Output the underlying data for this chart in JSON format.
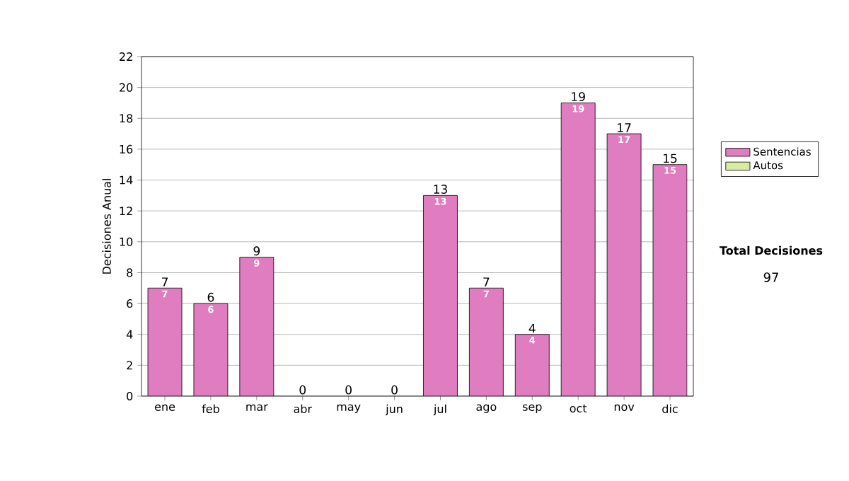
{
  "chart_data": {
    "type": "bar",
    "ylabel": "Decisiones Anual",
    "categories": [
      "ene",
      "feb",
      "mar",
      "abr",
      "may",
      "jun",
      "jul",
      "ago",
      "sep",
      "oct",
      "nov",
      "dic"
    ],
    "series": [
      {
        "name": "Sentencias",
        "color": "#e07cc0",
        "values": [
          7,
          6,
          9,
          0,
          0,
          0,
          13,
          7,
          4,
          19,
          17,
          15
        ],
        "value_labels": [
          "7",
          "6",
          "9",
          null,
          null,
          null,
          "13",
          "7",
          "4",
          "19",
          "17",
          "15"
        ]
      },
      {
        "name": "Autos",
        "color": "#d8eca0",
        "values": [
          0,
          0,
          0,
          0,
          0,
          0,
          0,
          0,
          0,
          0,
          0,
          0
        ]
      }
    ],
    "stacked": true,
    "totals": [
      "7",
      "6",
      "9",
      "0",
      "0",
      "0",
      "13",
      "7",
      "4",
      "19",
      "17",
      "15"
    ],
    "ylim": [
      0,
      22
    ],
    "yticks": [
      0,
      2,
      4,
      6,
      8,
      10,
      12,
      14,
      16,
      18,
      20,
      22
    ],
    "grid": "y",
    "legend": "right",
    "annotations": [
      "Total Decisiones",
      "97"
    ]
  }
}
